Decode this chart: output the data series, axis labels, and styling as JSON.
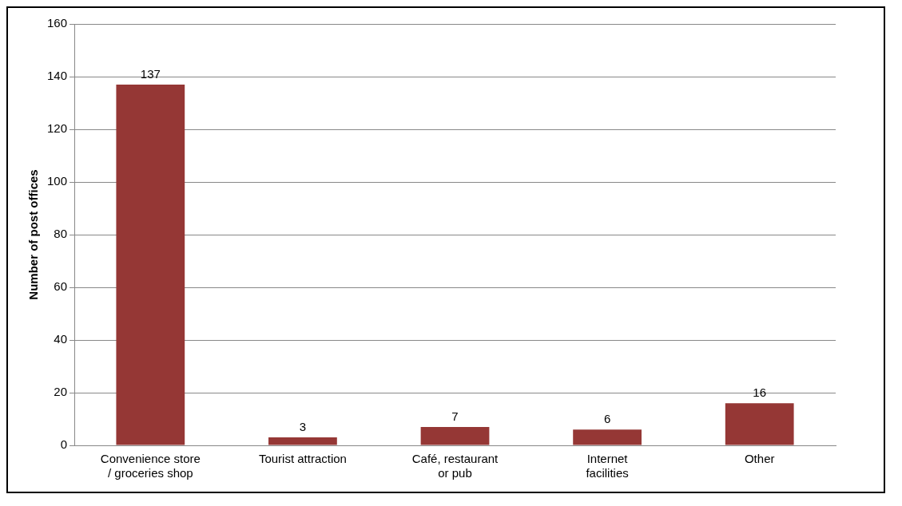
{
  "chart_data": {
    "type": "bar",
    "ylabel": "Number of post offices",
    "categories": [
      "Convenience store / groceries shop",
      "Tourist attraction",
      "Café, restaurant or pub",
      "Internet facilities",
      "Other"
    ],
    "values": [
      137,
      3,
      7,
      6,
      16
    ],
    "color": "#953735",
    "ylim": [
      0,
      160
    ],
    "yticks": [
      0,
      20,
      40,
      60,
      80,
      100,
      120,
      140,
      160
    ],
    "grid": "y",
    "data_labels": true,
    "legend": false
  }
}
